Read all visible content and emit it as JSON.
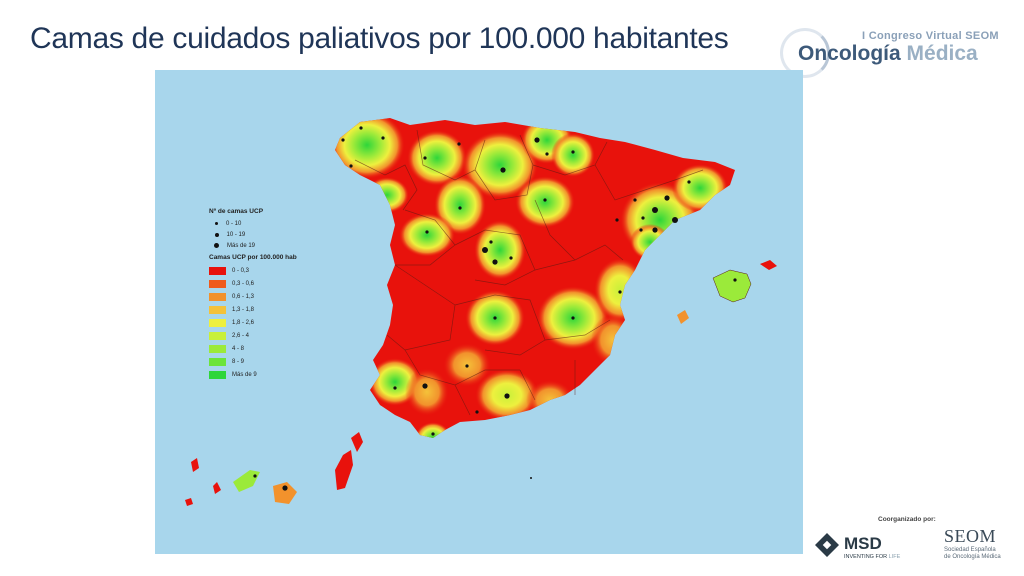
{
  "slide": {
    "title": "Camas de cuidados paliativos por 100.000 habitantes"
  },
  "congress_logo": {
    "line1": "I Congreso Virtual SEOM",
    "word1": "Oncología",
    "word2": "Médica"
  },
  "legend": {
    "beds_title": "Nº de camas UCP",
    "beds": [
      {
        "label": "0 - 10"
      },
      {
        "label": "10 - 19"
      },
      {
        "label": "Más de 19"
      }
    ],
    "rate_title": "Camas UCP por 100.000 hab",
    "rates": [
      {
        "label": "0 - 0,3",
        "color": "#e8120c"
      },
      {
        "label": "0,3 - 0,6",
        "color": "#ef5a1c"
      },
      {
        "label": "0,6 - 1,3",
        "color": "#f2922c"
      },
      {
        "label": "1,3 - 1,8",
        "color": "#f4c23a"
      },
      {
        "label": "1,8 - 2,6",
        "color": "#eef03e"
      },
      {
        "label": "2,6 - 4",
        "color": "#c8f03a"
      },
      {
        "label": "4 - 8",
        "color": "#9bea3a"
      },
      {
        "label": "8 - 9",
        "color": "#6ce43a"
      },
      {
        "label": "Más de 9",
        "color": "#2ed63a"
      }
    ]
  },
  "footer": {
    "organized_by": "Coorganizado por:",
    "msd_name": "MSD",
    "msd_tag_a": "INVENTING FOR ",
    "msd_tag_b": "LIFE",
    "seom_name": "SEOM",
    "seom_sub1": "Sociedad Española",
    "seom_sub2": "de Oncología Médica"
  },
  "colors": {
    "sea": "#a8d6ec",
    "title": "#1f3557"
  }
}
